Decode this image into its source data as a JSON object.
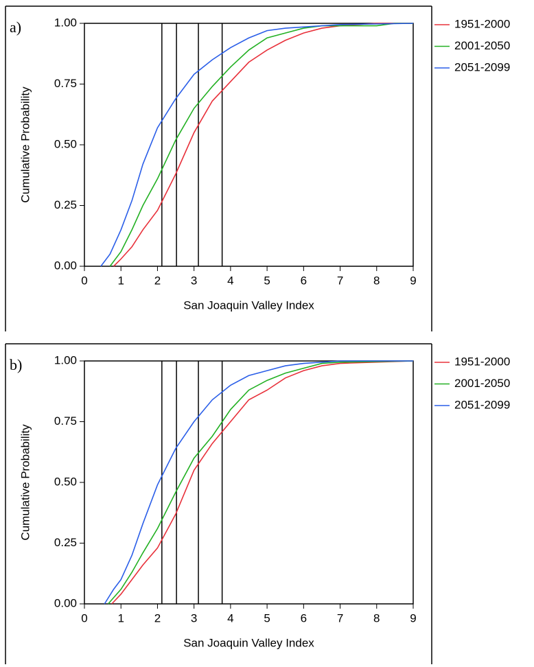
{
  "chart_data": [
    {
      "type": "line",
      "panel": "a)",
      "xlabel": "San Joaquin Valley Index",
      "ylabel": "Cumulative Probability",
      "xlim": [
        0,
        9
      ],
      "ylim": [
        0,
        1
      ],
      "xticks": [
        0,
        1,
        2,
        3,
        4,
        5,
        6,
        7,
        8,
        9
      ],
      "yticks": [
        {
          "value": 0,
          "label": "0.00"
        },
        0.25,
        {
          "value": 0.5,
          "label": "0.50"
        },
        0.75,
        {
          "value": 1,
          "label": "1.00"
        }
      ],
      "vlines": [
        2.12,
        2.52,
        3.12,
        3.77
      ],
      "series": [
        {
          "name": "1951-2000",
          "color": "#e8303a",
          "x": [
            0.8,
            1.0,
            1.3,
            1.6,
            2.0,
            2.5,
            3.0,
            3.5,
            4.0,
            4.5,
            5.0,
            5.5,
            6.0,
            6.5,
            7.0,
            8.0,
            9.0
          ],
          "values": [
            0,
            0.03,
            0.08,
            0.15,
            0.23,
            0.38,
            0.55,
            0.68,
            0.76,
            0.84,
            0.89,
            0.93,
            0.96,
            0.98,
            0.99,
            1.0,
            1.0
          ]
        },
        {
          "name": "2001-2050",
          "color": "#22b022",
          "x": [
            0.7,
            1.0,
            1.3,
            1.6,
            2.0,
            2.5,
            3.0,
            3.5,
            4.0,
            4.5,
            5.0,
            5.5,
            6.0,
            6.5,
            8.0,
            8.5,
            9.0
          ],
          "values": [
            0,
            0.06,
            0.15,
            0.25,
            0.36,
            0.52,
            0.65,
            0.74,
            0.82,
            0.89,
            0.94,
            0.96,
            0.98,
            0.99,
            0.99,
            1.0,
            1.0
          ]
        },
        {
          "name": "2051-2099",
          "color": "#2a5ee8",
          "x": [
            0.45,
            0.7,
            1.0,
            1.3,
            1.6,
            2.0,
            2.5,
            3.0,
            3.5,
            4.0,
            4.5,
            5.0,
            5.5,
            6.0,
            7.0,
            9.0
          ],
          "values": [
            0,
            0.05,
            0.15,
            0.27,
            0.42,
            0.57,
            0.69,
            0.79,
            0.85,
            0.9,
            0.94,
            0.97,
            0.98,
            0.985,
            0.995,
            1.0
          ]
        }
      ]
    },
    {
      "type": "line",
      "panel": "b)",
      "xlabel": "San Joaquin Valley Index",
      "ylabel": "Cumulative Probability",
      "xlim": [
        0,
        9
      ],
      "ylim": [
        0,
        1
      ],
      "xticks": [
        0,
        1,
        2,
        3,
        4,
        5,
        6,
        7,
        8,
        9
      ],
      "yticks": [
        {
          "value": 0,
          "label": "0.00"
        },
        0.25,
        {
          "value": 0.5,
          "label": "0.50"
        },
        0.75,
        {
          "value": 1,
          "label": "1.00"
        }
      ],
      "vlines": [
        2.12,
        2.52,
        3.12,
        3.77
      ],
      "series": [
        {
          "name": "1951-2000",
          "color": "#e8303a",
          "x": [
            0.75,
            1.0,
            1.3,
            1.6,
            2.0,
            2.5,
            3.0,
            3.5,
            4.0,
            4.5,
            5.0,
            5.5,
            6.0,
            6.5,
            7.0,
            9.0
          ],
          "values": [
            0,
            0.04,
            0.1,
            0.16,
            0.23,
            0.37,
            0.55,
            0.66,
            0.75,
            0.84,
            0.88,
            0.93,
            0.96,
            0.98,
            0.99,
            1.0
          ]
        },
        {
          "name": "2001-2050",
          "color": "#22b022",
          "x": [
            0.65,
            1.0,
            1.3,
            1.6,
            2.0,
            2.5,
            3.0,
            3.5,
            4.0,
            4.5,
            5.0,
            5.5,
            6.0,
            6.5,
            7.0,
            9.0
          ],
          "values": [
            0,
            0.06,
            0.13,
            0.21,
            0.31,
            0.46,
            0.6,
            0.69,
            0.8,
            0.88,
            0.92,
            0.95,
            0.97,
            0.99,
            0.995,
            1.0
          ]
        },
        {
          "name": "2051-2099",
          "color": "#2a5ee8",
          "x": [
            0.55,
            0.8,
            1.0,
            1.3,
            1.6,
            2.0,
            2.5,
            3.0,
            3.5,
            4.0,
            4.5,
            5.0,
            5.5,
            6.0,
            7.0,
            9.0
          ],
          "values": [
            0,
            0.06,
            0.1,
            0.2,
            0.33,
            0.49,
            0.64,
            0.75,
            0.84,
            0.9,
            0.94,
            0.96,
            0.98,
            0.99,
            1.0,
            1.0
          ]
        }
      ]
    }
  ]
}
